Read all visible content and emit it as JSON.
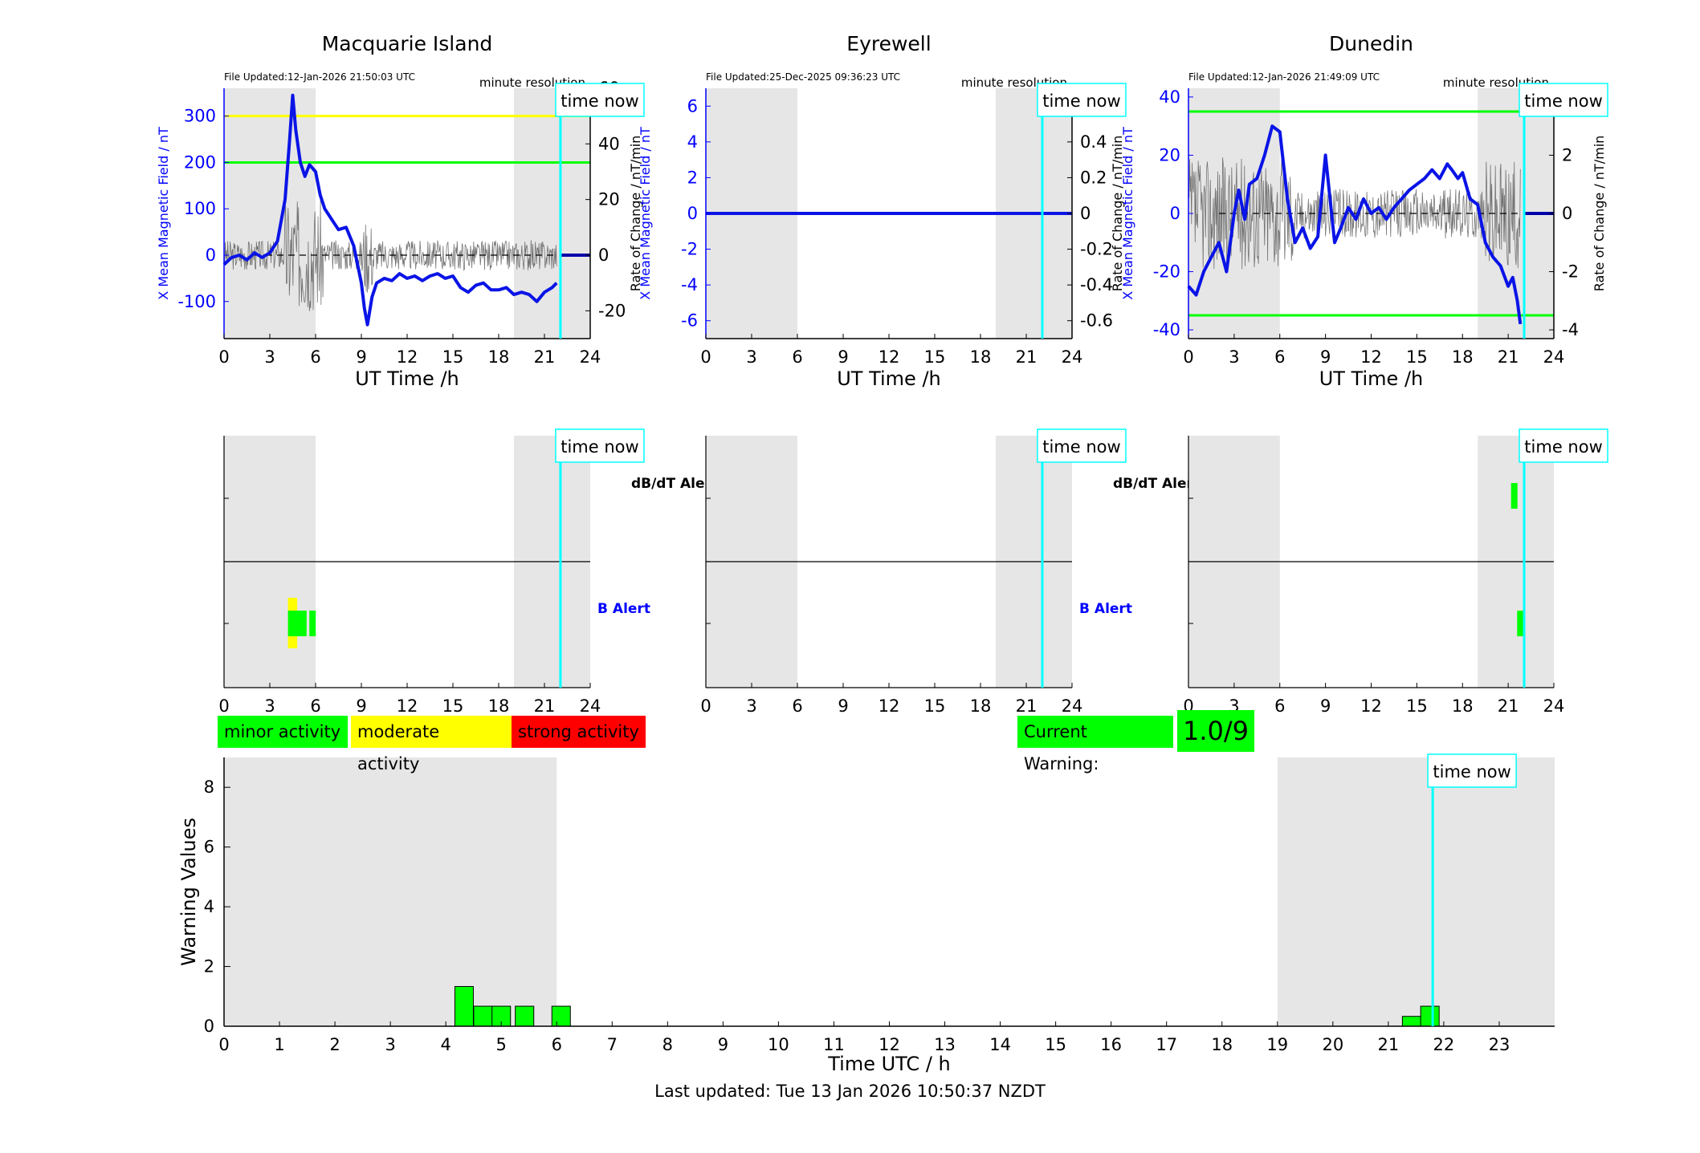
{
  "stations": [
    {
      "name": "Macquarie Island",
      "file_updated": "File Updated:12-Jan-2026 21:50:03 UTC",
      "resolution": "minute resolution",
      "left_ylabel": "X Mean Magnetic Field / nT",
      "right_ylabel": "Rate of Change / nT/min",
      "left_ylim": [
        -180,
        360
      ],
      "left_ticks": [
        -100,
        0,
        100,
        200,
        300
      ],
      "right_ylim": [
        -30,
        60
      ],
      "right_ticks": [
        -20,
        0,
        20,
        40,
        60
      ],
      "thresholds": [
        {
          "value": 300,
          "color": "#ffff00"
        },
        {
          "value": 200,
          "color": "#00ff00"
        }
      ],
      "field_series": {
        "name": "",
        "x": [
          0,
          0.5,
          1,
          1.5,
          2,
          2.5,
          3,
          3.5,
          4,
          4.3,
          4.5,
          4.7,
          5,
          5.3,
          5.6,
          6,
          6.3,
          6.6,
          7,
          7.5,
          8,
          8.5,
          9,
          9.2,
          9.4,
          9.7,
          10,
          10.5,
          11,
          11.5,
          12,
          12.5,
          13,
          13.5,
          14,
          14.5,
          15,
          15.5,
          16,
          16.5,
          17,
          17.5,
          18,
          18.5,
          19,
          19.5,
          20,
          20.5,
          21,
          21.5,
          21.8
        ],
        "y": [
          -20,
          -5,
          0,
          -10,
          5,
          -5,
          5,
          30,
          120,
          250,
          345,
          270,
          200,
          170,
          195,
          180,
          130,
          100,
          80,
          55,
          60,
          20,
          -60,
          -115,
          -150,
          -90,
          -60,
          -50,
          -55,
          -40,
          -50,
          -45,
          -55,
          -45,
          -40,
          -50,
          -45,
          -70,
          -80,
          -65,
          -60,
          -75,
          -75,
          -70,
          -85,
          -80,
          -85,
          -100,
          -80,
          -70,
          -60
        ]
      },
      "flat_after": 22,
      "alerts": {
        "b": [
          4.4,
          4.7,
          4.9,
          5.2,
          5.8
        ],
        "b_yellow": [
          4.4,
          4.6
        ],
        "dbdt": []
      }
    },
    {
      "name": "Eyrewell",
      "file_updated": "File Updated:25-Dec-2025 09:36:23 UTC",
      "resolution": "minute resolution",
      "left_ylabel": "X Mean Magnetic Field / nT",
      "right_ylabel": "Rate of Change / nT/min",
      "left_ylim": [
        -7,
        7
      ],
      "left_ticks": [
        -6,
        -4,
        -2,
        0,
        2,
        4,
        6
      ],
      "right_ylim": [
        -0.7,
        0.7
      ],
      "right_ticks": [
        -0.6,
        -0.4,
        -0.2,
        0,
        0.2,
        0.4,
        0.6
      ],
      "thresholds": [],
      "field_series": {
        "name": "",
        "x": [
          0,
          24
        ],
        "y": [
          0,
          0
        ]
      },
      "flat_after": 24,
      "alerts": {
        "b": [],
        "b_yellow": [],
        "dbdt": []
      }
    },
    {
      "name": "Dunedin",
      "file_updated": "File Updated:12-Jan-2026 21:49:09 UTC",
      "resolution": "minute resolution",
      "left_ylabel": "X Mean Magnetic Field / nT",
      "right_ylabel": "Rate of Change / nT/min",
      "left_ylim": [
        -43,
        43
      ],
      "left_ticks": [
        -40,
        -20,
        0,
        20,
        40
      ],
      "right_ylim": [
        -4.3,
        4.3
      ],
      "right_ticks": [
        -4,
        -2,
        0,
        2,
        4
      ],
      "thresholds": [
        {
          "value": 35,
          "color": "#00ff00"
        },
        {
          "value": -35,
          "color": "#00ff00"
        }
      ],
      "field_series": {
        "name": "",
        "x": [
          0,
          0.5,
          1,
          1.5,
          2,
          2.5,
          3,
          3.3,
          3.7,
          4,
          4.5,
          5,
          5.5,
          6,
          6.5,
          7,
          7.5,
          8,
          8.5,
          9,
          9.3,
          9.6,
          10,
          10.5,
          11,
          11.5,
          12,
          12.5,
          13,
          13.5,
          14,
          14.5,
          15,
          15.5,
          16,
          16.5,
          17,
          17.3,
          17.7,
          18,
          18.5,
          19,
          19.5,
          20,
          20.5,
          21,
          21.3,
          21.6,
          21.8
        ],
        "y": [
          -25,
          -28,
          -20,
          -15,
          -10,
          -20,
          0,
          8,
          -2,
          10,
          12,
          20,
          30,
          28,
          5,
          -10,
          -5,
          -12,
          -8,
          20,
          5,
          -10,
          -5,
          2,
          -2,
          5,
          0,
          2,
          -2,
          2,
          5,
          8,
          10,
          12,
          15,
          12,
          17,
          15,
          12,
          14,
          5,
          3,
          -10,
          -15,
          -18,
          -25,
          -22,
          -30,
          -38
        ]
      },
      "flat_after": 22,
      "alerts": {
        "b": [
          21.8
        ],
        "b_yellow": [],
        "dbdt": [
          21.4
        ]
      }
    }
  ],
  "top_xlabel": "UT Time /h",
  "x_ticks": [
    0,
    3,
    6,
    9,
    12,
    15,
    18,
    21,
    24
  ],
  "time_now_label": "time now",
  "time_now_hour": 22.05,
  "night_shading": [
    [
      0,
      6
    ],
    [
      19,
      24
    ]
  ],
  "alert_labels": {
    "dbdt": "dB/dT Alert",
    "b": "B Alert"
  },
  "legend": [
    {
      "label": "minor activity",
      "color": "#00ff00"
    },
    {
      "label": "moderate activity",
      "color": "#ffff00"
    },
    {
      "label": "strong activity",
      "color": "#ff0000"
    }
  ],
  "current_warning": {
    "label": "Current Warning:",
    "value": "1.0/9"
  },
  "chart_data": {
    "type": "bar",
    "xlabel": "Time UTC / h",
    "ylabel": "Warning Values",
    "xlim": [
      0,
      24
    ],
    "ylim": [
      0,
      9
    ],
    "x_ticks": [
      0,
      1,
      2,
      3,
      4,
      5,
      6,
      7,
      8,
      9,
      10,
      11,
      12,
      13,
      14,
      15,
      16,
      17,
      18,
      19,
      20,
      21,
      22,
      23
    ],
    "y_ticks": [
      0,
      2,
      4,
      6,
      8
    ],
    "shading": [
      [
        0,
        6
      ],
      [
        19,
        24
      ]
    ],
    "bars": [
      {
        "x": 4.33,
        "value": 1.33
      },
      {
        "x": 4.67,
        "value": 0.67
      },
      {
        "x": 5.0,
        "value": 0.67
      },
      {
        "x": 5.42,
        "value": 0.67
      },
      {
        "x": 6.08,
        "value": 0.67
      },
      {
        "x": 21.42,
        "value": 0.33
      },
      {
        "x": 21.75,
        "value": 0.67
      }
    ]
  },
  "last_updated": "Last updated: Tue 13 Jan 2026 10:50:37 NZDT"
}
